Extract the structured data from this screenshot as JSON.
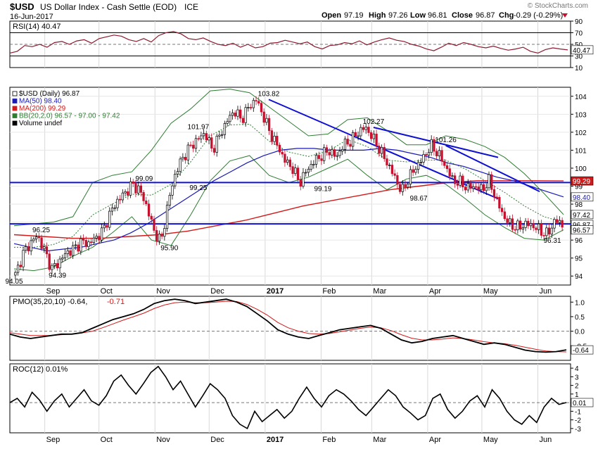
{
  "header": {
    "symbol": "$USD",
    "name": "US Dollar Index - Cash Settle (EOD)",
    "exchange": "ICE",
    "date": "16-Jun-2017",
    "watermark": "© StockCharts.com",
    "open_label": "Open",
    "open": "97.19",
    "high_label": "High",
    "high": "97.26",
    "low_label": "Low",
    "low": "96.81",
    "close_label": "Close",
    "close": "96.87",
    "change": "-0.29 (-0.29%)"
  },
  "colors": {
    "up": "#000000",
    "down": "#c8102e",
    "ma200": "#d21a1a",
    "ma50": "#1a1ab4",
    "bb": "#2e7d32",
    "trendline": "#1010d0",
    "rsi": "#8c1a2e",
    "pmo_signal": "#d21a1a"
  },
  "chart_data": [
    {
      "type": "line",
      "title": "RSI(14) 40.47",
      "legend": [
        {
          "text": "RSI(14) 40.47"
        }
      ],
      "ylim": [
        10,
        90
      ],
      "y_ticks": [
        "90",
        "70",
        "50",
        "30",
        "10"
      ],
      "reference_lines": [
        70,
        50,
        30
      ],
      "last_value_label": "40.47",
      "series": [
        {
          "name": "RSI(14)",
          "values": [
            35,
            38,
            48,
            46,
            50,
            45,
            53,
            55,
            50,
            56,
            58,
            52,
            60,
            63,
            66,
            64,
            58,
            55,
            60,
            54,
            65,
            70,
            72,
            68,
            60,
            58,
            61,
            55,
            50,
            48,
            52,
            45,
            50,
            44,
            46,
            52,
            53,
            57,
            54,
            51,
            54,
            46,
            42,
            48,
            49,
            53,
            51,
            56,
            49,
            54,
            58,
            61,
            57,
            55,
            50,
            47,
            42,
            39,
            45,
            52,
            48,
            53,
            50,
            46,
            44,
            47,
            43,
            40,
            42,
            45,
            38,
            35,
            41,
            44,
            42,
            40.47
          ]
        }
      ]
    },
    {
      "type": "line",
      "title": "$USD (Daily) 96.87",
      "legend": [
        {
          "text": "$USD (Daily) 96.87",
          "color": "#000000"
        },
        {
          "text": "MA(50) 98.40",
          "color": "#1a1ab4"
        },
        {
          "text": "MA(200) 99.29",
          "color": "#d21a1a"
        },
        {
          "text": "BB(20,2.0) 96.57 - 97.00 - 97.42",
          "color": "#2e7d32"
        },
        {
          "text": "Volume undef",
          "color": "#000000"
        }
      ],
      "ylim": [
        93.5,
        104.5
      ],
      "y_ticks": [
        "104",
        "103",
        "102",
        "101",
        "100",
        "99",
        "98",
        "97",
        "96",
        "95",
        "94"
      ],
      "x_labels": [
        "Sep",
        "Oct",
        "Nov",
        "Dec",
        "2017",
        "Feb",
        "Mar",
        "Apr",
        "May",
        "Jun"
      ],
      "value_labels": [
        {
          "text": "94.05",
          "x": "Aug 15",
          "y": 94.05
        },
        {
          "text": "96.25",
          "x": "Aug 30",
          "y": 96.25
        },
        {
          "text": "94.39",
          "x": "Sep 8",
          "y": 94.39
        },
        {
          "text": "99.09",
          "x": "Oct 26",
          "y": 99.09
        },
        {
          "text": "95.90",
          "x": "Nov 9",
          "y": 95.9
        },
        {
          "text": "99.25",
          "x": "Nov 25",
          "y": 99.25
        },
        {
          "text": "101.97",
          "x": "Nov 25",
          "y": 101.97
        },
        {
          "text": "103.82",
          "x": "Jan 3",
          "y": 103.82
        },
        {
          "text": "99.19",
          "x": "Feb 2",
          "y": 99.19
        },
        {
          "text": "102.27",
          "x": "Mar 2",
          "y": 102.27
        },
        {
          "text": "98.67",
          "x": "Mar 27",
          "y": 98.67
        },
        {
          "text": "101.26",
          "x": "Apr 11",
          "y": 101.26
        },
        {
          "text": "96.31",
          "x": "Jun 9",
          "y": 96.31
        }
      ],
      "right_axis_labels": [
        {
          "text": "99.29",
          "y": 99.29
        },
        {
          "text": "98.40",
          "y": 98.4
        },
        {
          "text": "97.42",
          "y": 97.42
        },
        {
          "text": "96.87",
          "y": 96.87
        },
        {
          "text": "96.57",
          "y": 96.57
        }
      ],
      "horizontal_levels": [
        99.2,
        96.9
      ],
      "trendlines": [
        {
          "from": {
            "x": "Jan 3",
            "y": 103.82
          },
          "to": {
            "x": "May 10",
            "y": 98.3
          }
        },
        {
          "from": {
            "x": "Mar 2",
            "y": 102.27
          },
          "to": {
            "x": "May 10",
            "y": 100.6
          }
        },
        {
          "from": {
            "x": "Apr 11",
            "y": 101.26
          },
          "to": {
            "x": "Jun 2",
            "y": 98.7
          }
        }
      ],
      "series": [
        {
          "name": "$USD (Daily)",
          "x_start": "Aug 15",
          "x_end": "Jun 16",
          "values": [
            94.05,
            95.2,
            95.8,
            96.25,
            95.4,
            94.39,
            94.8,
            95.3,
            95.5,
            95.9,
            95.8,
            96.1,
            96.5,
            97.5,
            98.2,
            98.6,
            99.09,
            98.8,
            97.9,
            96.5,
            95.9,
            98.2,
            99.8,
            100.6,
            101.2,
            101.6,
            101.97,
            101.0,
            101.8,
            102.6,
            103.2,
            102.7,
            103.4,
            103.82,
            102.9,
            101.9,
            101.2,
            100.4,
            100.0,
            99.19,
            99.9,
            100.4,
            100.7,
            101.0,
            100.6,
            101.3,
            101.5,
            102.0,
            102.27,
            101.7,
            101.0,
            100.3,
            99.5,
            98.67,
            99.5,
            100.1,
            100.6,
            101.26,
            100.8,
            100.1,
            99.3,
            99.2,
            98.9,
            99.0,
            98.8,
            99.3,
            98.2,
            97.3,
            96.8,
            96.7,
            96.9,
            96.8,
            96.5,
            96.31,
            97.1,
            96.87
          ]
        },
        {
          "name": "MA(50)",
          "values": [
            95.8,
            95.6,
            95.4,
            95.5,
            95.6,
            95.8,
            96.0,
            96.4,
            96.9,
            97.5,
            98.1,
            98.7,
            99.3,
            99.8,
            100.3,
            100.7,
            101.0,
            101.1,
            101.1,
            101.0,
            101.0,
            101.0,
            101.1,
            101.0,
            100.8,
            100.6,
            100.3,
            100.1,
            99.8,
            99.5,
            99.3,
            99.0,
            98.7,
            98.4
          ]
        },
        {
          "name": "MA(200)",
          "values": [
            96.3,
            96.2,
            96.1,
            96.1,
            96.2,
            96.3,
            96.5,
            96.8,
            97.1,
            97.5,
            97.9,
            98.2,
            98.5,
            98.8,
            99.0,
            99.2,
            99.3,
            99.3,
            99.3,
            99.29
          ]
        },
        {
          "name": "BB upper",
          "values": [
            96.8,
            96.9,
            97.0,
            97.3,
            99.2,
            99.6,
            99.8,
            101.0,
            102.5,
            103.3,
            104.3,
            104.4,
            104.2,
            103.4,
            102.6,
            101.8,
            101.9,
            102.7,
            102.8,
            102.1,
            101.3,
            101.3,
            101.8,
            101.6,
            101.2,
            100.6,
            99.7,
            98.6,
            97.42
          ]
        },
        {
          "name": "BB lower",
          "values": [
            94.4,
            94.3,
            94.5,
            95.1,
            95.6,
            96.4,
            97.3,
            96.0,
            95.7,
            97.4,
            99.3,
            100.4,
            100.7,
            99.6,
            99.2,
            99.5,
            100.0,
            100.5,
            99.6,
            98.8,
            99.4,
            99.6,
            99.1,
            98.3,
            97.4,
            96.7,
            96.1,
            96.0,
            96.57
          ]
        }
      ]
    },
    {
      "type": "line",
      "title": "PMO(35,20,10) -0.64, -0.71",
      "legend": [
        {
          "text": "PMO(35,20,10) -0.64,"
        },
        {
          "text": "-0.71",
          "color": "#d21a1a"
        }
      ],
      "ylim": [
        -1.0,
        1.2
      ],
      "y_ticks": [
        "1.0",
        "0.5",
        "0.0",
        "-0.5"
      ],
      "reference_lines": [
        0.0
      ],
      "last_value_label": "-0.64",
      "series": [
        {
          "name": "PMO",
          "values": [
            -0.1,
            -0.2,
            -0.25,
            -0.2,
            -0.15,
            -0.1,
            -0.1,
            -0.05,
            0.1,
            0.25,
            0.4,
            0.5,
            0.6,
            0.75,
            0.95,
            1.05,
            1.1,
            1.05,
            0.95,
            1.0,
            1.05,
            1.1,
            1.0,
            0.85,
            0.6,
            0.35,
            0.05,
            -0.1,
            -0.2,
            -0.25,
            -0.15,
            -0.05,
            0.05,
            0.1,
            0.15,
            0.2,
            0.1,
            -0.1,
            -0.3,
            -0.4,
            -0.35,
            -0.25,
            -0.2,
            -0.15,
            -0.25,
            -0.35,
            -0.45,
            -0.4,
            -0.45,
            -0.55,
            -0.65,
            -0.7,
            -0.72,
            -0.7,
            -0.64
          ]
        },
        {
          "name": "Signal",
          "values": [
            -0.05,
            -0.1,
            -0.15,
            -0.15,
            -0.15,
            -0.12,
            -0.1,
            -0.06,
            0.0,
            0.12,
            0.25,
            0.38,
            0.5,
            0.62,
            0.78,
            0.9,
            0.98,
            1.0,
            0.98,
            0.98,
            1.0,
            1.03,
            1.02,
            0.92,
            0.75,
            0.55,
            0.3,
            0.12,
            0.0,
            -0.08,
            -0.1,
            -0.08,
            -0.02,
            0.04,
            0.1,
            0.14,
            0.12,
            0.02,
            -0.12,
            -0.24,
            -0.3,
            -0.3,
            -0.27,
            -0.23,
            -0.25,
            -0.3,
            -0.36,
            -0.4,
            -0.43,
            -0.48,
            -0.55,
            -0.62,
            -0.68,
            -0.7,
            -0.71
          ]
        }
      ]
    },
    {
      "type": "line",
      "title": "ROC(12) 0.01%",
      "legend": [
        {
          "text": "ROC(12) 0.01%"
        }
      ],
      "ylim": [
        -3.5,
        4.5
      ],
      "y_ticks": [
        "4",
        "3",
        "2",
        "1",
        "0",
        "-1",
        "-2",
        "-3"
      ],
      "reference_lines": [
        0
      ],
      "last_value_label": "0.01",
      "series": [
        {
          "name": "ROC(12)",
          "values": [
            0.0,
            0.5,
            -0.5,
            1.2,
            0.3,
            -1.0,
            0.2,
            1.0,
            -0.5,
            0.5,
            1.5,
            0.2,
            -0.3,
            0.8,
            2.5,
            3.2,
            2.0,
            1.0,
            2.2,
            3.5,
            4.2,
            3.0,
            1.5,
            2.5,
            1.0,
            -0.5,
            0.8,
            2.2,
            1.5,
            0.5,
            -1.5,
            -2.5,
            -3.0,
            -1.0,
            -2.2,
            -1.5,
            -0.8,
            -1.8,
            -1.0,
            0.5,
            1.8,
            0.5,
            -0.5,
            0.8,
            1.5,
            1.0,
            0.2,
            -0.8,
            -1.5,
            -0.5,
            0.5,
            1.5,
            0.8,
            -0.5,
            -1.2,
            -2.0,
            -1.5,
            0.5,
            1.0,
            -0.8,
            -1.8,
            -1.0,
            0.2,
            0.8,
            -0.5,
            1.5,
            0.5,
            -1.0,
            -2.0,
            -2.5,
            -1.5,
            -2.3,
            -0.5,
            0.5,
            -0.2,
            0.01
          ]
        }
      ]
    }
  ]
}
